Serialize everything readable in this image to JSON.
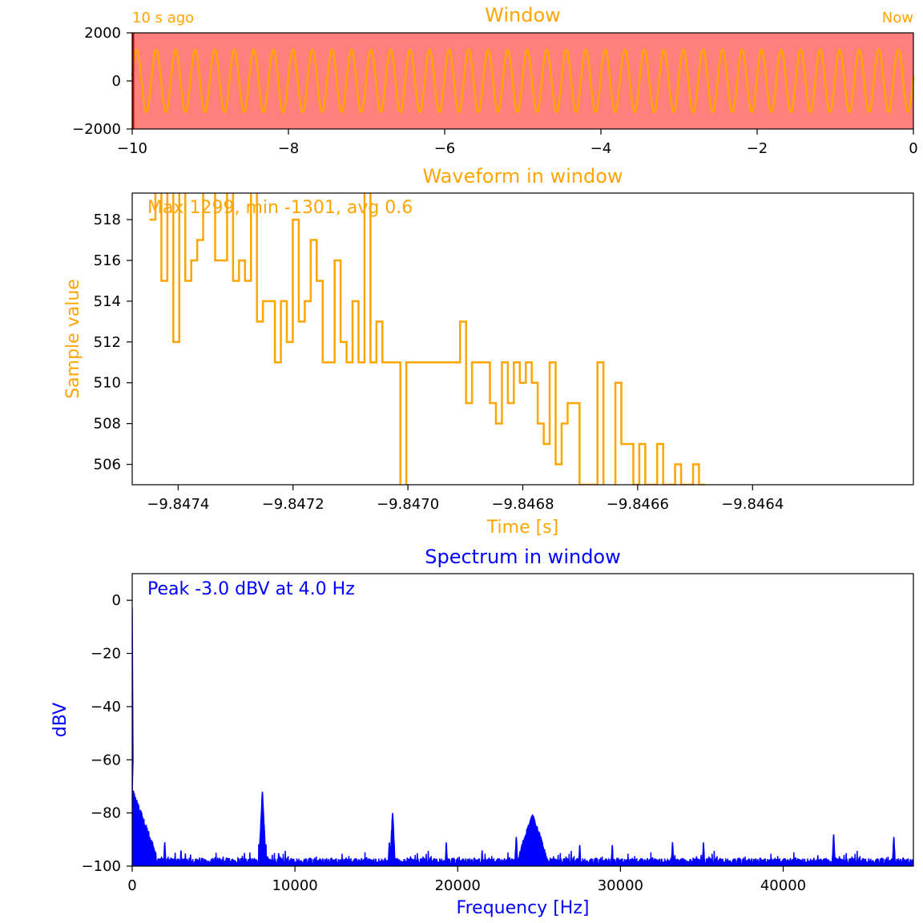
{
  "colors": {
    "orange": "#ffa500",
    "blue": "#0000ff",
    "window_fill": "#ff7f7f",
    "axis": "#000000"
  },
  "chart_data": [
    {
      "type": "line",
      "title": "Window",
      "left_label": "10 s ago",
      "right_label": "Now",
      "xlim": [
        -10,
        0
      ],
      "ylim": [
        -2000,
        2000
      ],
      "x_ticks": [
        -10,
        -8,
        -6,
        -4,
        -2,
        0
      ],
      "x_tick_labels": [
        "−10",
        "−8",
        "−6",
        "−4",
        "−2",
        "0"
      ],
      "y_ticks": [
        2000,
        0,
        -2000
      ],
      "y_tick_labels": [
        "2000",
        "0",
        "−2000"
      ],
      "series": [
        {
          "amplitude": 1300,
          "frequency_hz": 4.0,
          "color": "#ffa500"
        }
      ],
      "window_marker_x": -10
    },
    {
      "type": "line",
      "title": "Waveform in window",
      "annotation": "Max 1299, min -1301, avg 0.6",
      "xlabel": "Time [s]",
      "ylabel": "Sample value",
      "xlim": [
        -9.84748,
        -9.84612
      ],
      "ylim": [
        505,
        519.3
      ],
      "x_ticks": [
        -9.8474,
        -9.8472,
        -9.847,
        -9.8468,
        -9.8466,
        -9.8464
      ],
      "x_tick_labels": [
        "−9.8474",
        "−9.8472",
        "−9.8470",
        "−9.8468",
        "−9.8466",
        "−9.8464"
      ],
      "y_ticks": [
        506,
        508,
        510,
        512,
        514,
        516,
        518
      ],
      "y_tick_labels": [
        "506",
        "508",
        "510",
        "512",
        "514",
        "516",
        "518"
      ],
      "sample_period_s": 1.04e-05,
      "start_time_s": -9.84745,
      "values": [
        518,
        520,
        515,
        520,
        512,
        520,
        515,
        516,
        517,
        520,
        520,
        516,
        516,
        520,
        515,
        516,
        515,
        520,
        513,
        514,
        514,
        511,
        514,
        512,
        518,
        513,
        514,
        517,
        515,
        511,
        511,
        516,
        512,
        511,
        514,
        511,
        520,
        511,
        513,
        511,
        511,
        511,
        500,
        511,
        511,
        511,
        511,
        511,
        511,
        511,
        511,
        511,
        513,
        509,
        511,
        511,
        511,
        509,
        508,
        511,
        509,
        511,
        510,
        511,
        510,
        508,
        507,
        511,
        506,
        508,
        509,
        509,
        505,
        505,
        505,
        511,
        500,
        500,
        510,
        507,
        507,
        505,
        507,
        505,
        505,
        507,
        505,
        505,
        506,
        505,
        505,
        506,
        505
      ],
      "color": "#ffa500"
    },
    {
      "type": "line",
      "title": "Spectrum in window",
      "annotation": "Peak -3.0 dBV at 4.0 Hz",
      "xlabel": "Frequency [Hz]",
      "ylabel": "dBV",
      "xlim": [
        0,
        48000
      ],
      "ylim": [
        -100,
        10
      ],
      "x_ticks": [
        0,
        10000,
        20000,
        30000,
        40000
      ],
      "x_tick_labels": [
        "0",
        "10000",
        "20000",
        "30000",
        "40000"
      ],
      "y_ticks": [
        0,
        -20,
        -40,
        -60,
        -80,
        -100
      ],
      "y_tick_labels": [
        "0",
        "−20",
        "−40",
        "−60",
        "−80",
        "−100"
      ],
      "noise_floor_dbv": -97,
      "peaks": [
        {
          "x": 4,
          "y": -3
        },
        {
          "x": 2000,
          "y": -91
        },
        {
          "x": 3000,
          "y": -94
        },
        {
          "x": 7900,
          "y": -91
        },
        {
          "x": 8000,
          "y": -72
        },
        {
          "x": 9000,
          "y": -95
        },
        {
          "x": 16000,
          "y": -80
        },
        {
          "x": 15800,
          "y": -91
        },
        {
          "x": 19300,
          "y": -91
        },
        {
          "x": 21500,
          "y": -94
        },
        {
          "x": 23600,
          "y": -89
        },
        {
          "x": 24600,
          "y": -81
        },
        {
          "x": 27500,
          "y": -92
        },
        {
          "x": 29500,
          "y": -92
        },
        {
          "x": 33200,
          "y": -91
        },
        {
          "x": 35100,
          "y": -91
        },
        {
          "x": 43100,
          "y": -88
        },
        {
          "x": 46800,
          "y": -89
        }
      ],
      "color": "#0000ff"
    }
  ]
}
